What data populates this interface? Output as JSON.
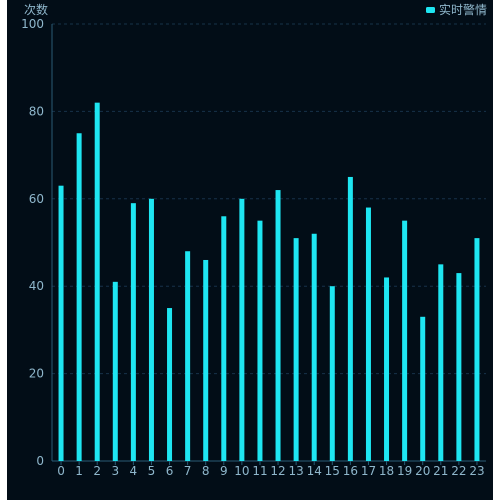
{
  "chart_data": {
    "type": "bar",
    "title": "",
    "xlabel": "",
    "ylabel": "次数",
    "ylim": [
      0,
      100
    ],
    "yticks": [
      0,
      20,
      40,
      60,
      80,
      100
    ],
    "grid": true,
    "legend": {
      "placement": "top-right",
      "label": "实时警情"
    },
    "categories": [
      "0",
      "1",
      "2",
      "3",
      "4",
      "5",
      "6",
      "7",
      "8",
      "9",
      "10",
      "11",
      "12",
      "13",
      "14",
      "15",
      "16",
      "17",
      "18",
      "19",
      "20",
      "21",
      "22",
      "23"
    ],
    "series": [
      {
        "name": "实时警情",
        "values": [
          63,
          75,
          82,
          41,
          59,
          60,
          35,
          48,
          46,
          56,
          60,
          55,
          62,
          51,
          52,
          40,
          65,
          58,
          42,
          55,
          33,
          45,
          43,
          51
        ]
      }
    ]
  },
  "colors": {
    "background": "#020d17",
    "bar": "#1ee6f2",
    "axis_text": "#8fb7cc",
    "grid": "#17324a",
    "axis_line": "#2a5c76"
  }
}
